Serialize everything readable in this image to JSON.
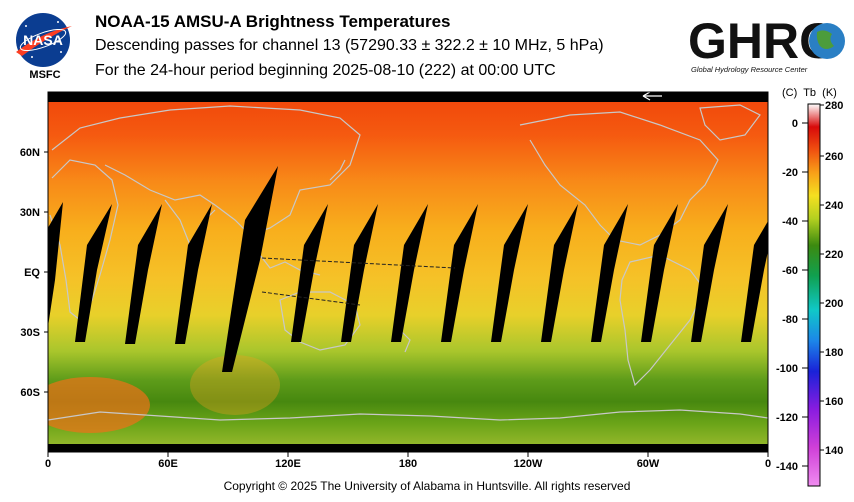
{
  "header": {
    "title": "NOAA-15 AMSU-A Brightness Temperatures",
    "subtitle": "Descending passes for channel 13 (57290.33 ± 322.2 ± 10 MHz, 5 hPa)",
    "period": "For the 24-hour period beginning 2025-08-10 (222) at 00:00 UTC"
  },
  "logos": {
    "nasa_text": "NASA",
    "msfc_text": "MSFC",
    "ghrc_text": "GHRC",
    "ghrc_subtext": "Global Hydrology Resource Center"
  },
  "map": {
    "lat_labels": [
      "60N",
      "30N",
      "EQ",
      "30S",
      "60S"
    ],
    "lon_labels": [
      "0",
      "60E",
      "120E",
      "180",
      "120W",
      "60W",
      "0"
    ],
    "swath_gap_color": "#000000",
    "coastline_color": "#c8c8c8"
  },
  "colorbar": {
    "unit_c": "(C)",
    "unit_tb": "Tb",
    "unit_k": "(K)",
    "celsius_ticks": [
      "0",
      "-20",
      "-40",
      "-60",
      "-80",
      "-100",
      "-120",
      "-140"
    ],
    "kelvin_ticks": [
      "280",
      "260",
      "240",
      "220",
      "200",
      "180",
      "160",
      "140"
    ]
  },
  "footer": {
    "copyright": "Copyright © 2025 The University of Alabama in Huntsville.  All rights reserved"
  }
}
